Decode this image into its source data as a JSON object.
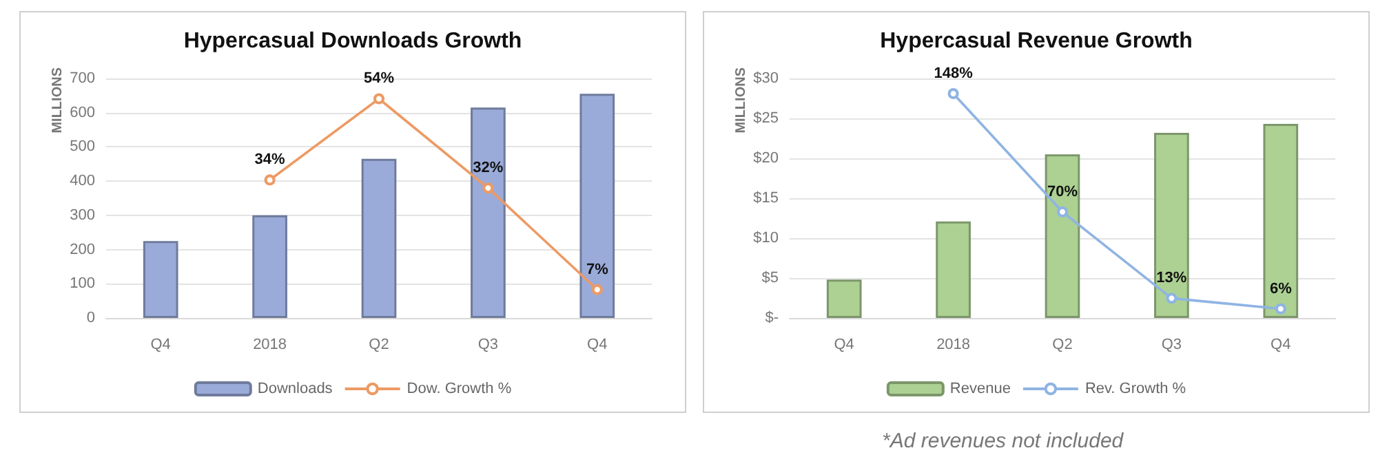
{
  "chart_data": [
    {
      "type": "bar",
      "title": "Hypercasual Downloads Growth",
      "ylabel": "MILLIONS",
      "categories": [
        "Q4",
        "2018",
        "Q2",
        "Q3",
        "Q4"
      ],
      "ylim": [
        0,
        700
      ],
      "yticks": [
        0,
        100,
        200,
        300,
        400,
        500,
        600,
        700
      ],
      "y2lim": [
        0,
        59
      ],
      "grid": "y",
      "legend": "bottom",
      "series": [
        {
          "name": "Downloads",
          "color": "#9aabd9",
          "values": [
            225,
            300,
            465,
            615,
            655
          ]
        },
        {
          "name": "Dow. Growth %",
          "type": "line",
          "axis": "y2",
          "color": "#ed9a64",
          "marker": "circle",
          "values": [
            null,
            34,
            54,
            32,
            7
          ],
          "value_labels": [
            null,
            "34%",
            "54%",
            "32%",
            "7%"
          ]
        }
      ]
    },
    {
      "type": "bar",
      "title": "Hypercasual Revenue Growth",
      "ylabel": "MILLIONS",
      "categories": [
        "Q4",
        "2018",
        "Q2",
        "Q3",
        "Q4"
      ],
      "ylim": [
        0,
        30
      ],
      "yticks": [
        {
          "value": 0,
          "label": "$-"
        },
        {
          "value": 5,
          "label": "$5"
        },
        {
          "value": 10,
          "label": "$10"
        },
        {
          "value": 15,
          "label": "$15"
        },
        {
          "value": 20,
          "label": "$20"
        },
        {
          "value": 25,
          "label": "$25"
        },
        {
          "value": 30,
          "label": "$30"
        }
      ],
      "y2lim": [
        0,
        158
      ],
      "grid": "y",
      "legend": "bottom",
      "annotations": [
        "*Ad revenues not included"
      ],
      "series": [
        {
          "name": "Revenue",
          "color": "#acd193",
          "values": [
            4.8,
            12.1,
            20.5,
            23.2,
            24.3
          ]
        },
        {
          "name": "Rev. Growth %",
          "type": "line",
          "axis": "y2",
          "color": "#8fb4e3",
          "marker": "circle",
          "values": [
            null,
            148,
            70,
            13,
            6
          ],
          "value_labels": [
            null,
            "148%",
            "70%",
            "13%",
            "6%"
          ]
        }
      ]
    }
  ]
}
